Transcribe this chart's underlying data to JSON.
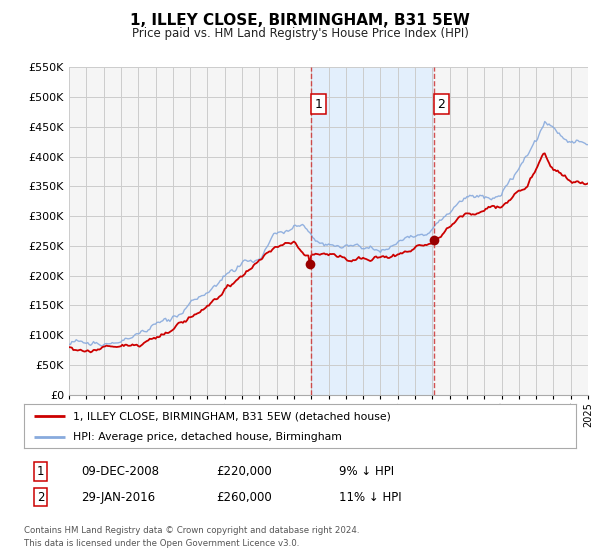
{
  "title": "1, ILLEY CLOSE, BIRMINGHAM, B31 5EW",
  "subtitle": "Price paid vs. HM Land Registry's House Price Index (HPI)",
  "legend_entry1": "1, ILLEY CLOSE, BIRMINGHAM, B31 5EW (detached house)",
  "legend_entry2": "HPI: Average price, detached house, Birmingham",
  "annotation1_label": "1",
  "annotation1_date": "09-DEC-2008",
  "annotation1_price": "£220,000",
  "annotation1_hpi": "9% ↓ HPI",
  "annotation2_label": "2",
  "annotation2_date": "29-JAN-2016",
  "annotation2_price": "£260,000",
  "annotation2_hpi": "11% ↓ HPI",
  "footnote1": "Contains HM Land Registry data © Crown copyright and database right 2024.",
  "footnote2": "This data is licensed under the Open Government Licence v3.0.",
  "vline1_x": 2009.0,
  "vline2_x": 2016.1,
  "marker1_x": 2008.92,
  "marker1_y": 220000,
  "marker2_x": 2016.1,
  "marker2_y": 260000,
  "xlim_left": 1995,
  "xlim_right": 2025,
  "ylim_bottom": 0,
  "ylim_top": 550000,
  "yticks": [
    0,
    50000,
    100000,
    150000,
    200000,
    250000,
    300000,
    350000,
    400000,
    450000,
    500000,
    550000
  ],
  "line1_color": "#cc0000",
  "line2_color": "#88aadd",
  "marker_color": "#990000",
  "shade_color": "#ddeeff",
  "vline_color": "#cc3333",
  "grid_color": "#cccccc",
  "plot_bg": "#f5f5f5"
}
